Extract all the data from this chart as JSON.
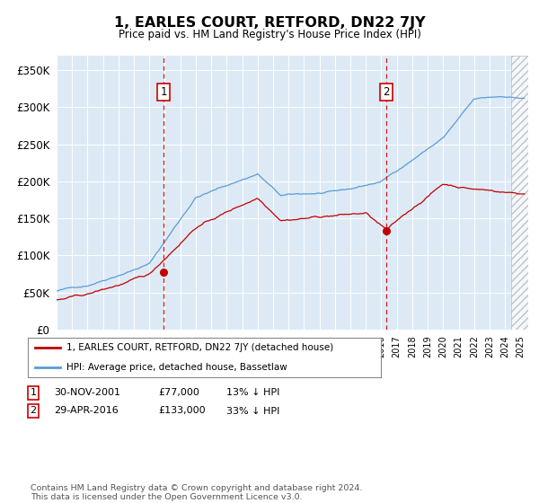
{
  "title": "1, EARLES COURT, RETFORD, DN22 7JY",
  "subtitle": "Price paid vs. HM Land Registry's House Price Index (HPI)",
  "ytick_values": [
    0,
    50000,
    100000,
    150000,
    200000,
    250000,
    300000,
    350000
  ],
  "ylim": [
    0,
    370000
  ],
  "xlim_start": 1995.0,
  "xlim_end": 2025.5,
  "hpi_color": "#5b9bd5",
  "price_color": "#c00000",
  "bg_color": "#ddeaf6",
  "marker1_year": 2001.92,
  "marker1_value": 77000,
  "marker1_label": "1",
  "marker2_year": 2016.33,
  "marker2_value": 133000,
  "marker2_label": "2",
  "legend_line1": "1, EARLES COURT, RETFORD, DN22 7JY (detached house)",
  "legend_line2": "HPI: Average price, detached house, Bassetlaw",
  "table_row1": [
    "1",
    "30-NOV-2001",
    "£77,000",
    "13% ↓ HPI"
  ],
  "table_row2": [
    "2",
    "29-APR-2016",
    "£133,000",
    "33% ↓ HPI"
  ],
  "footer": "Contains HM Land Registry data © Crown copyright and database right 2024.\nThis data is licensed under the Open Government Licence v3.0."
}
